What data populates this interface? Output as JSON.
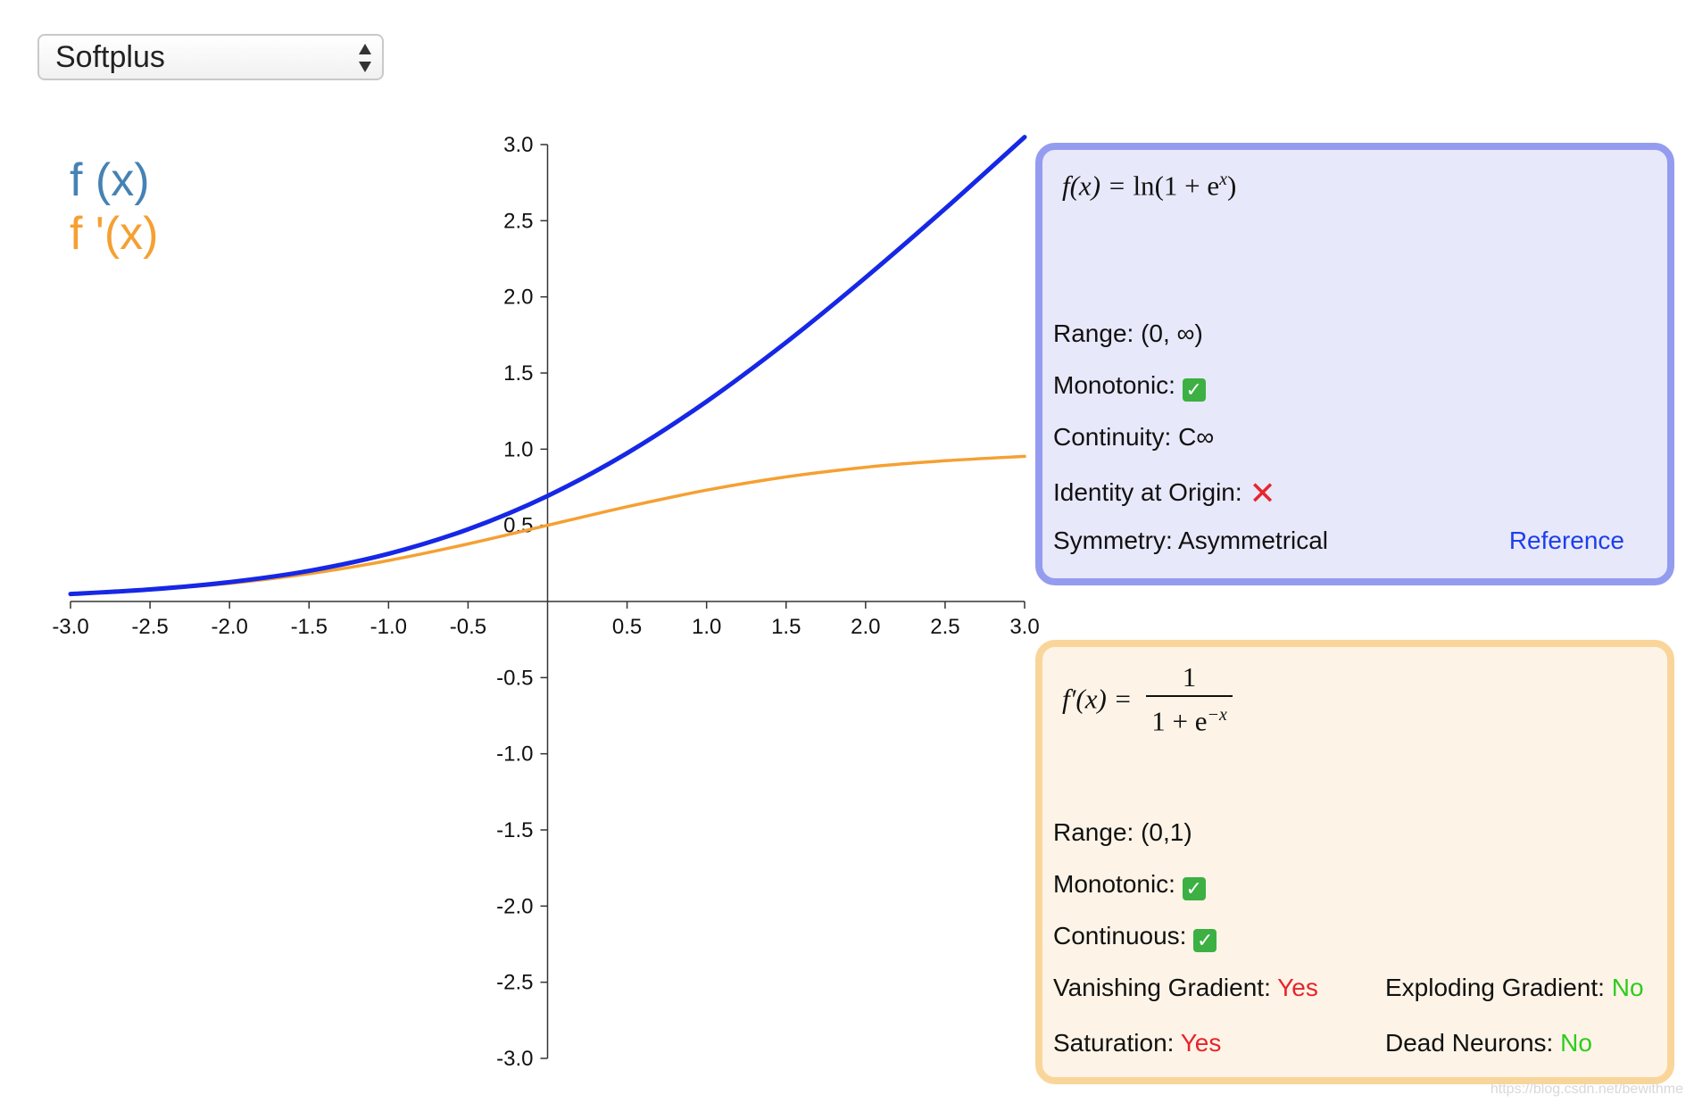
{
  "dropdown": {
    "selected": "Softplus"
  },
  "legend": {
    "f_label": "f (x)",
    "fp_label": "f '(x)"
  },
  "colors": {
    "f": "#1627e6",
    "fp": "#f5a032",
    "legend_f": "#4682b4",
    "legend_fp": "#f5a032"
  },
  "panel_f": {
    "formula": {
      "lhs": "f(x) =",
      "rhs_func": "ln",
      "rhs_args": "(1 + e",
      "rhs_exp": "x",
      "rhs_close": ")"
    },
    "range": "Range: (0, ∞)",
    "monotonic_label": "Monotonic:",
    "continuity": "Continuity: C∞",
    "identity_label": "Identity at Origin:",
    "symmetry": "Symmetry: Asymmetrical",
    "reference": "Reference"
  },
  "panel_fp": {
    "formula": {
      "lhs": "f′(x) =",
      "numerator": "1",
      "den_base": "1 + e",
      "den_exp": "−x"
    },
    "range": "Range: (0,1)",
    "monotonic_label": "Monotonic:",
    "continuous_label": "Continuous:",
    "vanishing_label": "Vanishing Gradient:",
    "vanishing_value": "Yes",
    "exploding_label": "Exploding Gradient:",
    "exploding_value": "No",
    "saturation_label": "Saturation:",
    "saturation_value": "Yes",
    "dead_label": "Dead Neurons:",
    "dead_value": "No"
  },
  "watermark": "https://blog.csdn.net/bewithme",
  "chart_data": {
    "type": "line",
    "x": [
      -3.0,
      -2.5,
      -2.0,
      -1.5,
      -1.0,
      -0.5,
      0.0,
      0.5,
      1.0,
      1.5,
      2.0,
      2.5,
      3.0
    ],
    "series": [
      {
        "name": "f (x)",
        "values": [
          0.049,
          0.079,
          0.127,
          0.201,
          0.313,
          0.474,
          0.693,
          0.974,
          1.313,
          1.701,
          2.127,
          2.579,
          3.049
        ]
      },
      {
        "name": "f '(x)",
        "values": [
          0.047,
          0.076,
          0.119,
          0.182,
          0.269,
          0.378,
          0.5,
          0.622,
          0.731,
          0.818,
          0.881,
          0.924,
          0.953
        ]
      }
    ],
    "xlim": [
      -3.0,
      3.0
    ],
    "ylim": [
      -3.0,
      3.0
    ],
    "xticks": [
      -3.0,
      -2.5,
      -2.0,
      -1.5,
      -1.0,
      -0.5,
      0.5,
      1.0,
      1.5,
      2.0,
      2.5,
      3.0
    ],
    "xtick_labels": [
      "-3.0",
      "-2.5",
      "-2.0",
      "-1.5",
      "-1.0",
      "-0.5",
      "0.5",
      "1.0",
      "1.5",
      "2.0",
      "2.5",
      "3.0"
    ],
    "yticks": [
      3.0,
      2.5,
      2.0,
      1.5,
      1.0,
      0.5,
      -0.5,
      -1.0,
      -1.5,
      -2.0,
      -2.5,
      -3.0
    ],
    "ytick_labels": [
      "3.0",
      "2.5",
      "2.0",
      "1.5",
      "1.0",
      "0.5",
      "-0.5",
      "-1.0",
      "-1.5",
      "-2.0",
      "-2.5",
      "-3.0"
    ],
    "grid": false,
    "legend": "top-left"
  }
}
